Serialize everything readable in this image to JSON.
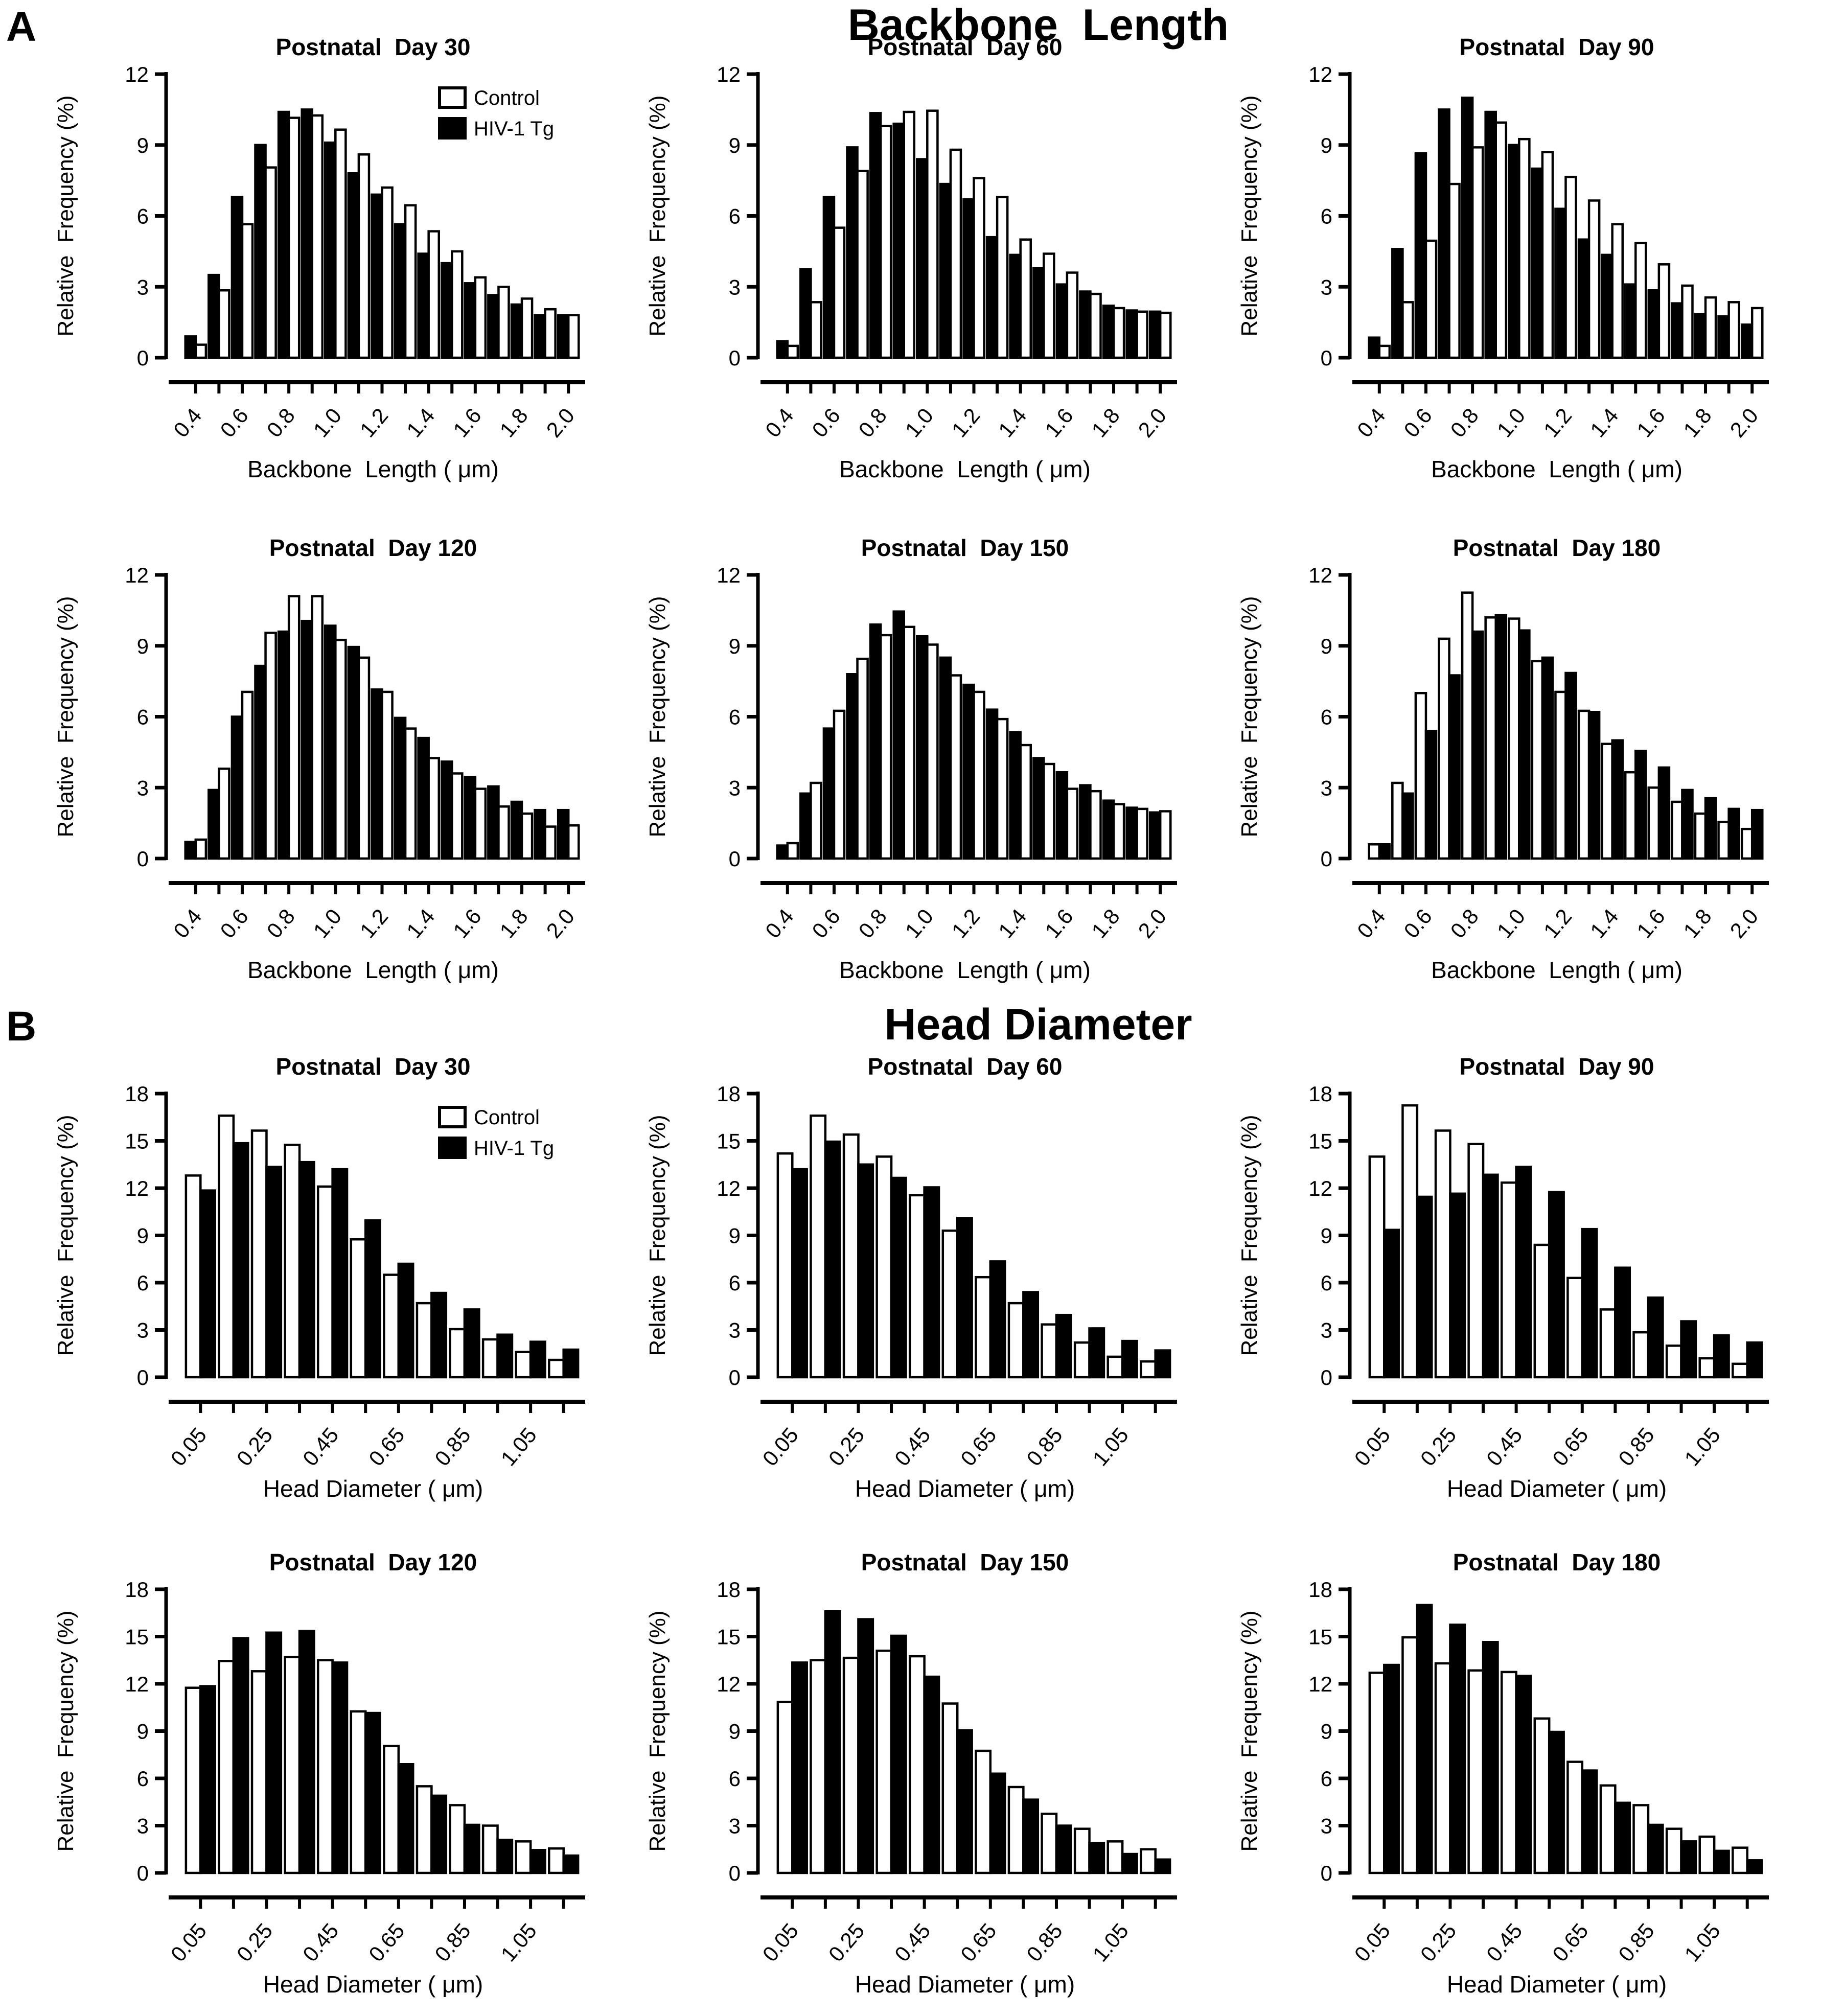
{
  "figure": {
    "panel_a": {
      "label": "A",
      "title": "Backbone  Length"
    },
    "panel_b": {
      "label": "B",
      "title": "Head Diameter"
    }
  },
  "legend": {
    "entries": [
      {
        "label": "Control",
        "fill": "#FFFFFF"
      },
      {
        "label": "HIV-1 Tg",
        "fill": "#000000"
      }
    ]
  },
  "colors": {
    "foreground": "#000000",
    "background": "#FFFFFF"
  },
  "chart_data": [
    {
      "id": "backbone-day-30",
      "panel": "A",
      "type": "bar",
      "title": "Postnatal  Day 30",
      "xlabel": "Backbone  Length ( μm)",
      "ylabel": "Relative  Frequency (%)",
      "ylim": [
        0,
        12
      ],
      "yticks": [
        0,
        3,
        6,
        9,
        12
      ],
      "label_every": 2,
      "show_legend": true,
      "categories": [
        "0.4",
        "0.5",
        "0.6",
        "0.7",
        "0.8",
        "0.9",
        "1.0",
        "1.1",
        "1.2",
        "1.3",
        "1.4",
        "1.5",
        "1.6",
        "1.7",
        "1.8",
        "1.9",
        "2.0"
      ],
      "series": [
        {
          "name": "HIV-1 Tg",
          "fill": "#000000",
          "values": [
            0.9,
            3.5,
            6.8,
            9.0,
            10.4,
            10.5,
            9.1,
            7.8,
            6.9,
            5.65,
            4.4,
            4.0,
            3.15,
            2.65,
            2.25,
            1.8,
            1.8
          ]
        },
        {
          "name": "Control",
          "fill": "#FFFFFF",
          "values": [
            0.55,
            2.85,
            5.65,
            8.05,
            10.15,
            10.25,
            9.65,
            8.6,
            7.2,
            6.45,
            5.35,
            4.5,
            3.4,
            3.0,
            2.5,
            2.05,
            1.8
          ]
        }
      ]
    },
    {
      "id": "backbone-day-60",
      "panel": "A",
      "type": "bar",
      "title": "Postnatal  Day 60",
      "xlabel": "Backbone  Length ( μm)",
      "ylabel": "Relative  Frequency (%)",
      "ylim": [
        0,
        12
      ],
      "yticks": [
        0,
        3,
        6,
        9,
        12
      ],
      "label_every": 2,
      "show_legend": false,
      "categories": [
        "0.4",
        "0.5",
        "0.6",
        "0.7",
        "0.8",
        "0.9",
        "1.0",
        "1.1",
        "1.2",
        "1.3",
        "1.4",
        "1.5",
        "1.6",
        "1.7",
        "1.8",
        "1.9",
        "2.0"
      ],
      "series": [
        {
          "name": "HIV-1 Tg",
          "fill": "#000000",
          "values": [
            0.7,
            3.75,
            6.8,
            8.9,
            10.35,
            9.9,
            8.4,
            7.35,
            6.7,
            5.1,
            4.35,
            3.8,
            3.1,
            2.8,
            2.2,
            2.0,
            1.95
          ]
        },
        {
          "name": "Control",
          "fill": "#FFFFFF",
          "values": [
            0.5,
            2.35,
            5.5,
            7.9,
            9.8,
            10.4,
            10.45,
            8.8,
            7.6,
            6.8,
            5.0,
            4.4,
            3.6,
            2.7,
            2.1,
            1.95,
            1.9
          ]
        }
      ]
    },
    {
      "id": "backbone-day-90",
      "panel": "A",
      "type": "bar",
      "title": "Postnatal  Day 90",
      "xlabel": "Backbone  Length ( μm)",
      "ylabel": "Relative  Frequency (%)",
      "ylim": [
        0,
        12
      ],
      "yticks": [
        0,
        3,
        6,
        9,
        12
      ],
      "label_every": 2,
      "show_legend": false,
      "categories": [
        "0.4",
        "0.5",
        "0.6",
        "0.7",
        "0.8",
        "0.9",
        "1.0",
        "1.1",
        "1.2",
        "1.3",
        "1.4",
        "1.5",
        "1.6",
        "1.7",
        "1.8",
        "1.9",
        "2.0"
      ],
      "series": [
        {
          "name": "HIV-1 Tg",
          "fill": "#000000",
          "values": [
            0.85,
            4.6,
            8.65,
            10.5,
            11.0,
            10.4,
            9.0,
            8.0,
            6.3,
            5.0,
            4.35,
            3.1,
            2.85,
            2.3,
            1.85,
            1.75,
            1.4
          ]
        },
        {
          "name": "Control",
          "fill": "#FFFFFF",
          "values": [
            0.5,
            2.35,
            4.95,
            7.35,
            8.9,
            9.95,
            9.25,
            8.7,
            7.65,
            6.65,
            5.65,
            4.85,
            3.95,
            3.05,
            2.55,
            2.35,
            2.1
          ]
        }
      ]
    },
    {
      "id": "backbone-day-120",
      "panel": "A",
      "type": "bar",
      "title": "Postnatal  Day 120",
      "xlabel": "Backbone  Length ( μm)",
      "ylabel": "Relative  Frequency (%)",
      "ylim": [
        0,
        12
      ],
      "yticks": [
        0,
        3,
        6,
        9,
        12
      ],
      "label_every": 2,
      "show_legend": false,
      "categories": [
        "0.4",
        "0.5",
        "0.6",
        "0.7",
        "0.8",
        "0.9",
        "1.0",
        "1.1",
        "1.2",
        "1.3",
        "1.4",
        "1.5",
        "1.6",
        "1.7",
        "1.8",
        "1.9",
        "2.0"
      ],
      "series": [
        {
          "name": "HIV-1 Tg",
          "fill": "#000000",
          "values": [
            0.7,
            2.9,
            6.0,
            8.15,
            9.6,
            10.05,
            9.85,
            8.95,
            7.15,
            5.95,
            5.1,
            4.1,
            3.45,
            3.05,
            2.4,
            2.05,
            2.05
          ]
        },
        {
          "name": "Control",
          "fill": "#FFFFFF",
          "values": [
            0.8,
            3.8,
            7.05,
            9.55,
            11.1,
            11.1,
            9.25,
            8.5,
            7.05,
            5.5,
            4.25,
            3.6,
            2.95,
            2.2,
            1.9,
            1.35,
            1.4
          ]
        }
      ]
    },
    {
      "id": "backbone-day-150",
      "panel": "A",
      "type": "bar",
      "title": "Postnatal  Day 150",
      "xlabel": "Backbone  Length ( μm)",
      "ylabel": "Relative  Frequency (%)",
      "ylim": [
        0,
        12
      ],
      "yticks": [
        0,
        3,
        6,
        9,
        12
      ],
      "label_every": 2,
      "show_legend": false,
      "categories": [
        "0.4",
        "0.5",
        "0.6",
        "0.7",
        "0.8",
        "0.9",
        "1.0",
        "1.1",
        "1.2",
        "1.3",
        "1.4",
        "1.5",
        "1.6",
        "1.7",
        "1.8",
        "1.9",
        "2.0"
      ],
      "series": [
        {
          "name": "HIV-1 Tg",
          "fill": "#000000",
          "values": [
            0.55,
            2.75,
            5.5,
            7.8,
            9.9,
            10.45,
            9.4,
            8.5,
            7.35,
            6.3,
            5.35,
            4.25,
            3.65,
            3.1,
            2.45,
            2.15,
            1.95
          ]
        },
        {
          "name": "Control",
          "fill": "#FFFFFF",
          "values": [
            0.65,
            3.2,
            6.25,
            8.45,
            9.45,
            9.8,
            9.05,
            7.75,
            7.05,
            5.9,
            4.8,
            4.0,
            2.95,
            2.85,
            2.3,
            2.1,
            2.0
          ]
        }
      ]
    },
    {
      "id": "backbone-day-180",
      "panel": "A",
      "type": "bar",
      "title": "Postnatal  Day 180",
      "xlabel": "Backbone  Length ( μm)",
      "ylabel": "Relative  Frequency (%)",
      "ylim": [
        0,
        12
      ],
      "yticks": [
        0,
        3,
        6,
        9,
        12
      ],
      "label_every": 2,
      "show_legend": false,
      "categories": [
        "0.4",
        "0.5",
        "0.6",
        "0.7",
        "0.8",
        "0.9",
        "1.0",
        "1.1",
        "1.2",
        "1.3",
        "1.4",
        "1.5",
        "1.6",
        "1.7",
        "1.8",
        "1.9",
        "2.0"
      ],
      "series": [
        {
          "name": "Control",
          "fill": "#FFFFFF",
          "values": [
            0.6,
            3.2,
            7.0,
            9.3,
            11.25,
            10.2,
            10.15,
            8.35,
            7.05,
            6.25,
            4.85,
            3.65,
            3.0,
            2.4,
            1.9,
            1.55,
            1.25
          ]
        },
        {
          "name": "HIV-1 Tg",
          "fill": "#000000",
          "values": [
            0.6,
            2.75,
            5.4,
            7.75,
            9.6,
            10.3,
            9.65,
            8.5,
            7.85,
            6.2,
            5.0,
            4.55,
            3.85,
            2.9,
            2.55,
            2.1,
            2.05
          ]
        }
      ]
    },
    {
      "id": "head-day-30",
      "panel": "B",
      "type": "bar",
      "title": "Postnatal  Day 30",
      "xlabel": "Head Diameter ( μm)",
      "ylabel": "Relative  Frequency (%)",
      "ylim": [
        0,
        18
      ],
      "yticks": [
        0,
        3,
        6,
        9,
        12,
        15,
        18
      ],
      "label_every": 2,
      "show_legend": true,
      "categories": [
        "0.05",
        "0.15",
        "0.25",
        "0.35",
        "0.45",
        "0.55",
        "0.65",
        "0.75",
        "0.85",
        "0.95",
        "1.05",
        "1.15"
      ],
      "series": [
        {
          "name": "Control",
          "fill": "#FFFFFF",
          "values": [
            12.8,
            16.6,
            15.65,
            14.75,
            12.1,
            8.75,
            6.5,
            4.7,
            3.05,
            2.4,
            1.6,
            1.1
          ]
        },
        {
          "name": "HIV-1 Tg",
          "fill": "#000000",
          "values": [
            11.85,
            14.85,
            13.35,
            13.65,
            13.2,
            9.95,
            7.2,
            5.35,
            4.3,
            2.7,
            2.25,
            1.75
          ]
        }
      ]
    },
    {
      "id": "head-day-60",
      "panel": "B",
      "type": "bar",
      "title": "Postnatal  Day 60",
      "xlabel": "Head Diameter ( μm)",
      "ylabel": "Relative  Frequency (%)",
      "ylim": [
        0,
        18
      ],
      "yticks": [
        0,
        3,
        6,
        9,
        12,
        15,
        18
      ],
      "label_every": 2,
      "show_legend": false,
      "categories": [
        "0.05",
        "0.15",
        "0.25",
        "0.35",
        "0.45",
        "0.55",
        "0.65",
        "0.75",
        "0.85",
        "0.95",
        "1.05",
        "1.15"
      ],
      "series": [
        {
          "name": "Control",
          "fill": "#FFFFFF",
          "values": [
            14.2,
            16.6,
            15.4,
            14.0,
            11.55,
            9.3,
            6.35,
            4.7,
            3.35,
            2.2,
            1.3,
            1.0
          ]
        },
        {
          "name": "HIV-1 Tg",
          "fill": "#000000",
          "values": [
            13.2,
            14.95,
            13.5,
            12.65,
            12.05,
            10.1,
            7.35,
            5.4,
            3.95,
            3.1,
            2.3,
            1.7
          ]
        }
      ]
    },
    {
      "id": "head-day-90",
      "panel": "B",
      "type": "bar",
      "title": "Postnatal  Day 90",
      "xlabel": "Head Diameter ( μm)",
      "ylabel": "Relative  Frequency (%)",
      "ylim": [
        0,
        18
      ],
      "yticks": [
        0,
        3,
        6,
        9,
        12,
        15,
        18
      ],
      "label_every": 2,
      "show_legend": false,
      "categories": [
        "0.05",
        "0.15",
        "0.25",
        "0.35",
        "0.45",
        "0.55",
        "0.65",
        "0.75",
        "0.85",
        "0.95",
        "1.05",
        "1.15"
      ],
      "series": [
        {
          "name": "Control",
          "fill": "#FFFFFF",
          "values": [
            14.0,
            17.25,
            15.65,
            14.8,
            12.35,
            8.4,
            6.3,
            4.3,
            2.85,
            2.0,
            1.2,
            0.85
          ]
        },
        {
          "name": "HIV-1 Tg",
          "fill": "#000000",
          "values": [
            9.35,
            11.45,
            11.65,
            12.85,
            13.35,
            11.75,
            9.4,
            6.95,
            5.05,
            3.55,
            2.65,
            2.2
          ]
        }
      ]
    },
    {
      "id": "head-day-120",
      "panel": "B",
      "type": "bar",
      "title": "Postnatal  Day 120",
      "xlabel": "Head Diameter ( μm)",
      "ylabel": "Relative  Frequency (%)",
      "ylim": [
        0,
        18
      ],
      "yticks": [
        0,
        3,
        6,
        9,
        12,
        15,
        18
      ],
      "label_every": 2,
      "show_legend": false,
      "categories": [
        "0.05",
        "0.15",
        "0.25",
        "0.35",
        "0.45",
        "0.55",
        "0.65",
        "0.75",
        "0.85",
        "0.95",
        "1.05",
        "1.15"
      ],
      "series": [
        {
          "name": "Control",
          "fill": "#FFFFFF",
          "values": [
            11.75,
            13.45,
            12.8,
            13.7,
            13.5,
            10.25,
            8.05,
            5.5,
            4.3,
            3.0,
            2.0,
            1.55
          ]
        },
        {
          "name": "HIV-1 Tg",
          "fill": "#000000",
          "values": [
            11.85,
            14.9,
            15.25,
            15.35,
            13.35,
            10.15,
            6.9,
            4.9,
            3.05,
            2.1,
            1.45,
            1.1
          ]
        }
      ]
    },
    {
      "id": "head-day-150",
      "panel": "B",
      "type": "bar",
      "title": "Postnatal  Day 150",
      "xlabel": "Head Diameter ( μm)",
      "ylabel": "Relative  Frequency (%)",
      "ylim": [
        0,
        18
      ],
      "yticks": [
        0,
        3,
        6,
        9,
        12,
        15,
        18
      ],
      "label_every": 2,
      "show_legend": false,
      "categories": [
        "0.05",
        "0.15",
        "0.25",
        "0.35",
        "0.45",
        "0.55",
        "0.65",
        "0.75",
        "0.85",
        "0.95",
        "1.05",
        "1.15"
      ],
      "series": [
        {
          "name": "Control",
          "fill": "#FFFFFF",
          "values": [
            10.85,
            13.5,
            13.65,
            14.1,
            13.75,
            10.75,
            7.75,
            5.45,
            3.75,
            2.8,
            2.0,
            1.5
          ]
        },
        {
          "name": "HIV-1 Tg",
          "fill": "#000000",
          "values": [
            13.35,
            16.6,
            16.1,
            15.05,
            12.45,
            9.05,
            6.3,
            4.65,
            3.0,
            1.9,
            1.2,
            0.85
          ]
        }
      ]
    },
    {
      "id": "head-day-180",
      "panel": "B",
      "type": "bar",
      "title": "Postnatal  Day 180",
      "xlabel": "Head Diameter ( μm)",
      "ylabel": "Relative  Frequency (%)",
      "ylim": [
        0,
        18
      ],
      "yticks": [
        0,
        3,
        6,
        9,
        12,
        15,
        18
      ],
      "label_every": 2,
      "show_legend": false,
      "categories": [
        "0.05",
        "0.15",
        "0.25",
        "0.35",
        "0.45",
        "0.55",
        "0.65",
        "0.75",
        "0.85",
        "0.95",
        "1.05",
        "1.15"
      ],
      "series": [
        {
          "name": "Control",
          "fill": "#FFFFFF",
          "values": [
            12.7,
            14.95,
            13.3,
            12.85,
            12.75,
            9.8,
            7.05,
            5.55,
            4.3,
            2.8,
            2.3,
            1.6
          ]
        },
        {
          "name": "HIV-1 Tg",
          "fill": "#000000",
          "values": [
            13.2,
            17.0,
            15.75,
            14.65,
            12.5,
            8.95,
            6.5,
            4.45,
            3.05,
            2.0,
            1.4,
            0.8
          ]
        }
      ]
    }
  ]
}
